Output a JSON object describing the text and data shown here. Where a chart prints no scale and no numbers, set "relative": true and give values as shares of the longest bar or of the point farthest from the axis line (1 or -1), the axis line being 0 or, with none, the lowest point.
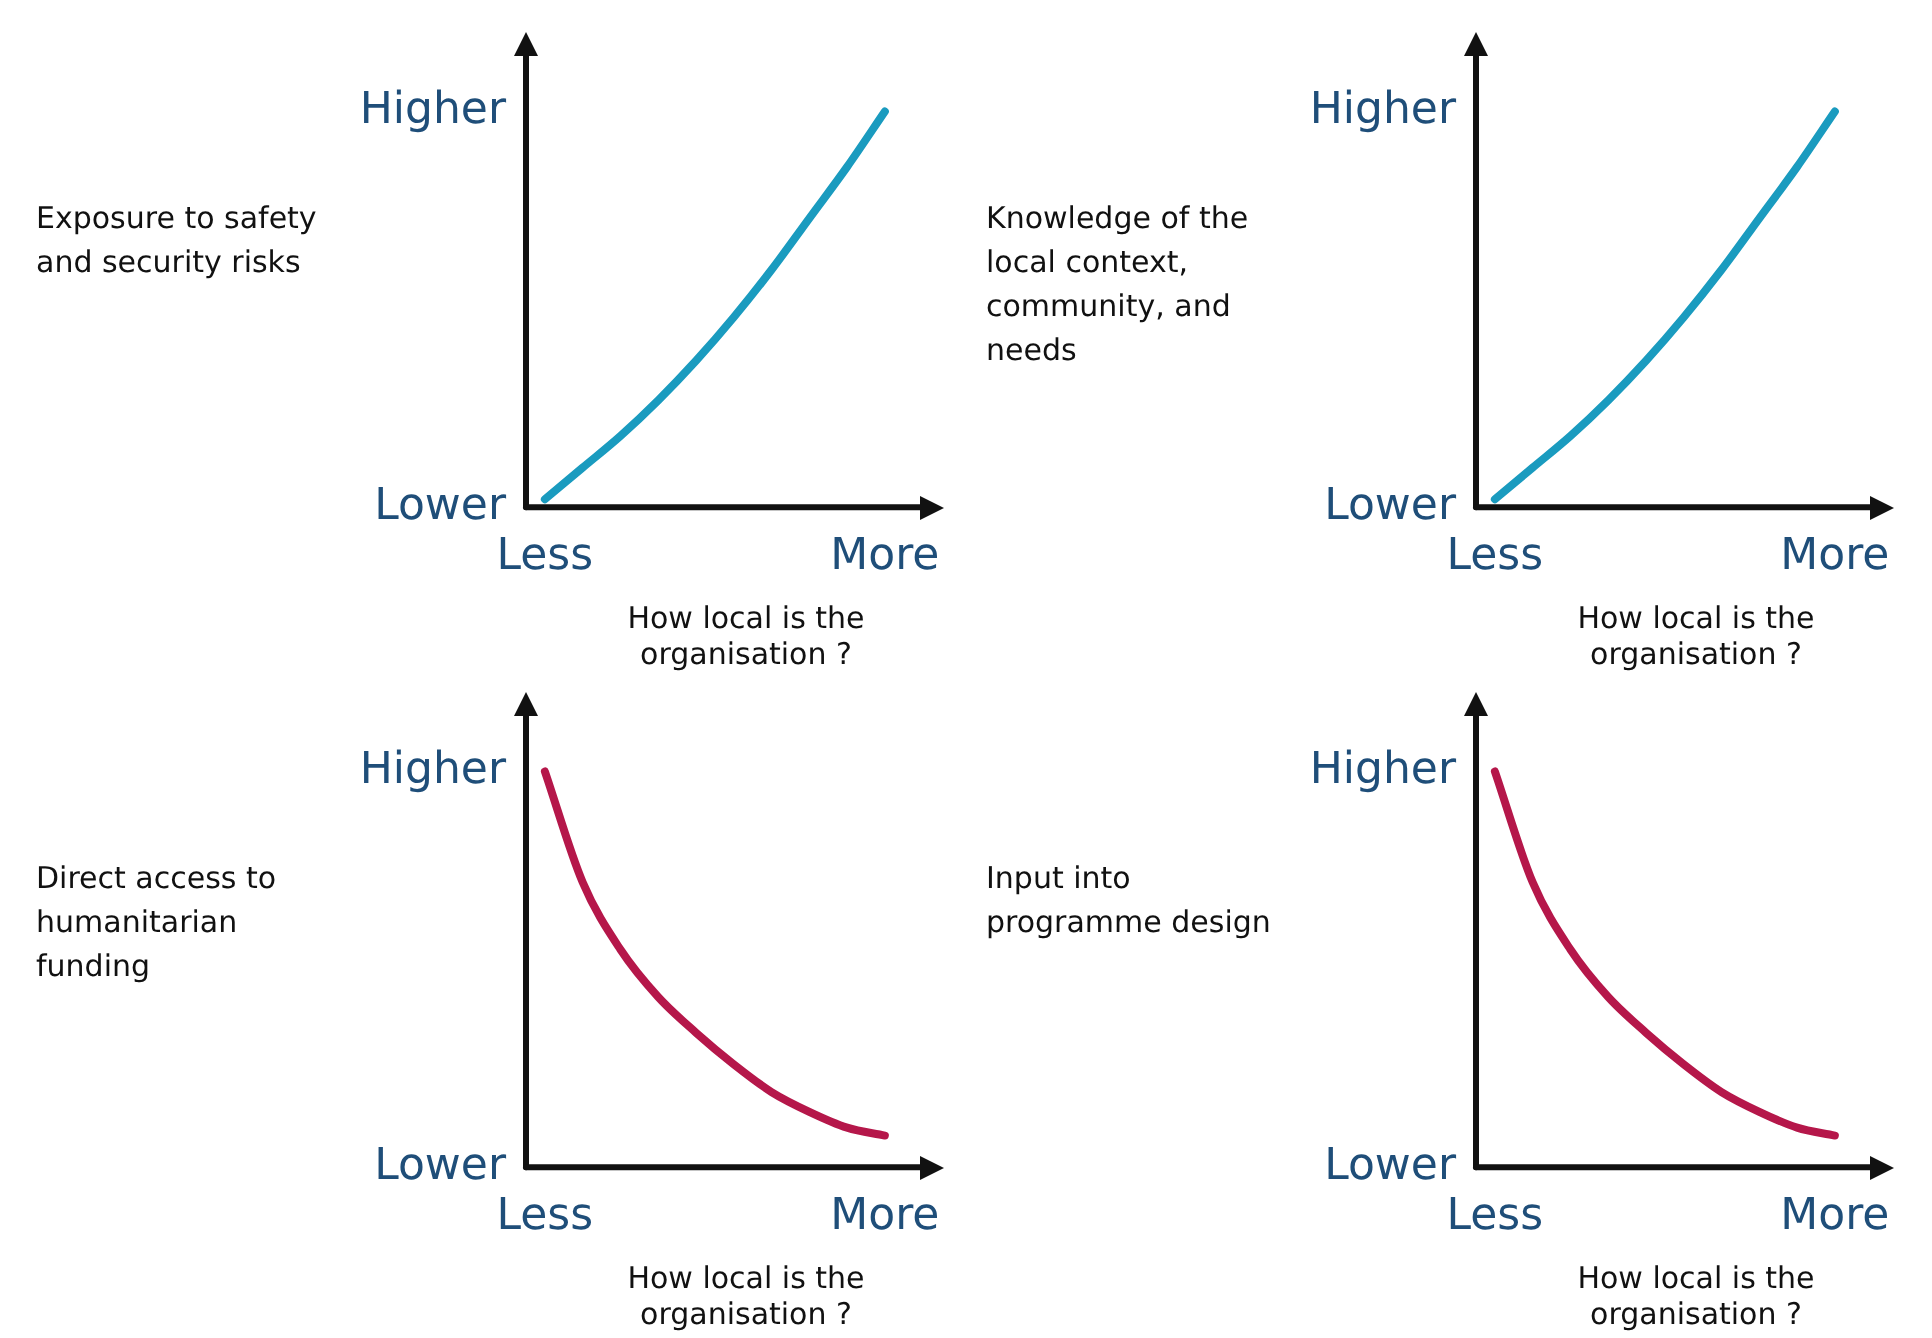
{
  "chart_data": [
    {
      "type": "line",
      "relative": true,
      "ylabel": "Exposure to safety and security risks",
      "xlabel": "How local is the organisation ?",
      "categories": [
        "Less",
        null,
        null,
        null,
        null,
        null,
        null,
        null,
        null,
        "More"
      ],
      "annotations": [
        "Higher",
        "Lower"
      ],
      "marker": "none",
      "grid": false,
      "series": [
        {
          "color": "#1a9bbf",
          "values": [
            0.02,
            0.1,
            0.18,
            0.27,
            0.37,
            0.48,
            0.6,
            0.73,
            0.86,
            1
          ]
        }
      ]
    },
    {
      "type": "line",
      "relative": true,
      "ylabel": "Knowledge of the local context, community, and needs",
      "xlabel": "How local is the organisation ?",
      "categories": [
        "Less",
        null,
        null,
        null,
        null,
        null,
        null,
        null,
        null,
        "More"
      ],
      "annotations": [
        "Higher",
        "Lower"
      ],
      "marker": "none",
      "grid": false,
      "series": [
        {
          "color": "#1a9bbf",
          "values": [
            0.02,
            0.1,
            0.18,
            0.27,
            0.37,
            0.48,
            0.6,
            0.73,
            0.86,
            1
          ]
        }
      ]
    },
    {
      "type": "line",
      "relative": true,
      "ylabel": "Direct access to humanitarian funding",
      "xlabel": "How local is the organisation ?",
      "categories": [
        "Less",
        null,
        null,
        null,
        null,
        null,
        null,
        null,
        null,
        "More"
      ],
      "annotations": [
        "Higher",
        "Lower"
      ],
      "marker": "none",
      "grid": false,
      "series": [
        {
          "color": "#b5174a",
          "values": [
            1,
            0.72,
            0.55,
            0.43,
            0.34,
            0.26,
            0.19,
            0.14,
            0.1,
            0.08
          ]
        }
      ]
    },
    {
      "type": "line",
      "relative": true,
      "ylabel": "Input into programme design",
      "xlabel": "How local is the organisation ?",
      "categories": [
        "Less",
        null,
        null,
        null,
        null,
        null,
        null,
        null,
        null,
        "More"
      ],
      "annotations": [
        "Higher",
        "Lower"
      ],
      "marker": "none",
      "grid": false,
      "series": [
        {
          "color": "#b5174a",
          "values": [
            1,
            0.72,
            0.55,
            0.43,
            0.34,
            0.26,
            0.19,
            0.14,
            0.1,
            0.08
          ]
        }
      ]
    }
  ]
}
